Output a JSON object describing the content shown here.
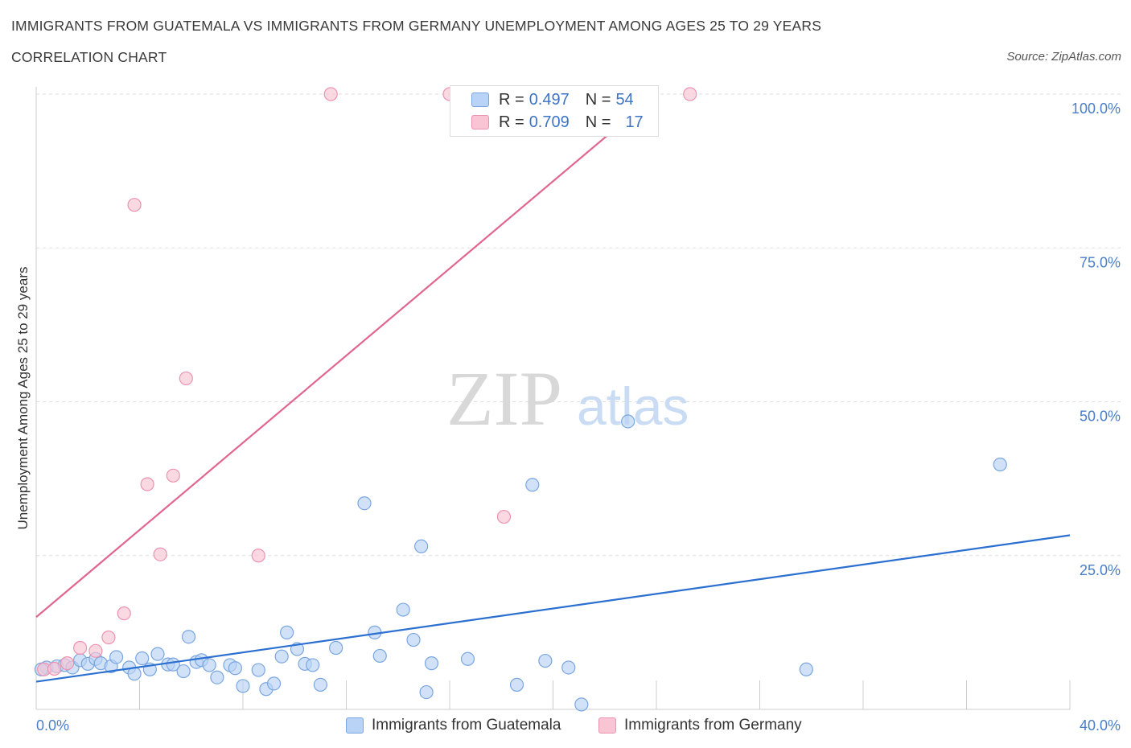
{
  "title": "IMMIGRANTS FROM GUATEMALA VS IMMIGRANTS FROM GERMANY UNEMPLOYMENT AMONG AGES 25 TO 29 YEARS",
  "subtitle": "CORRELATION CHART",
  "source": "Source: ZipAtlas.com",
  "watermark": {
    "zip": "ZIP",
    "atlas": "atlas"
  },
  "colors": {
    "guatemala_fill": "#b8d3f5",
    "guatemala_stroke": "#7aa6e0",
    "guatemala_line": "#2b6fd0",
    "germany_fill": "#f9c4d4",
    "germany_stroke": "#ec93b1",
    "germany_line": "#e06690",
    "tick_text": "#4a7ec8",
    "grid": "#dddddd"
  },
  "legend": {
    "rows": [
      {
        "r_label": "R = ",
        "r_value": "0.497",
        "n_label": "N = ",
        "n_value": "54"
      },
      {
        "r_label": "R = ",
        "r_value": "0.709",
        "n_label": "N = ",
        "n_value": "17"
      }
    ]
  },
  "bottom_legend": [
    "Immigrants from Guatemala",
    "Immigrants from Germany"
  ],
  "chart_data": {
    "type": "scatter",
    "ylabel": "Unemployment Among Ages 25 to 29 years",
    "xlim": [
      0,
      40
    ],
    "ylim": [
      0,
      100
    ],
    "x_tick_labels": [
      "0.0%",
      "40.0%"
    ],
    "y_ticks": [
      25,
      50,
      75,
      100
    ],
    "y_tick_labels": [
      "25.0%",
      "50.0%",
      "75.0%",
      "100.0%"
    ],
    "grid": true,
    "series": [
      {
        "name": "Immigrants from Guatemala",
        "R": 0.497,
        "N": 54,
        "trend": {
          "x": [
            0,
            40
          ],
          "y": [
            4.5,
            28.3
          ]
        },
        "points": [
          [
            0.4,
            6.8
          ],
          [
            0.8,
            7.0
          ],
          [
            1.1,
            7.2
          ],
          [
            1.4,
            6.8
          ],
          [
            1.7,
            8.0
          ],
          [
            2.0,
            7.4
          ],
          [
            2.3,
            8.2
          ],
          [
            2.5,
            7.5
          ],
          [
            2.9,
            7.0
          ],
          [
            3.1,
            8.5
          ],
          [
            3.6,
            6.8
          ],
          [
            3.8,
            5.8
          ],
          [
            4.1,
            8.3
          ],
          [
            4.4,
            6.5
          ],
          [
            4.7,
            9.0
          ],
          [
            5.1,
            7.3
          ],
          [
            5.3,
            7.3
          ],
          [
            5.7,
            6.2
          ],
          [
            5.9,
            11.8
          ],
          [
            6.2,
            7.7
          ],
          [
            6.4,
            8.0
          ],
          [
            6.7,
            7.2
          ],
          [
            7.0,
            5.2
          ],
          [
            7.5,
            7.2
          ],
          [
            7.7,
            6.7
          ],
          [
            8.0,
            3.8
          ],
          [
            8.6,
            6.4
          ],
          [
            8.9,
            3.3
          ],
          [
            9.2,
            4.2
          ],
          [
            9.5,
            8.6
          ],
          [
            9.7,
            12.5
          ],
          [
            10.1,
            9.8
          ],
          [
            10.4,
            7.4
          ],
          [
            10.7,
            7.2
          ],
          [
            11.0,
            4.0
          ],
          [
            11.6,
            10.0
          ],
          [
            12.7,
            33.5
          ],
          [
            13.1,
            12.5
          ],
          [
            13.3,
            8.7
          ],
          [
            14.2,
            16.2
          ],
          [
            14.6,
            11.3
          ],
          [
            14.9,
            26.5
          ],
          [
            15.1,
            2.8
          ],
          [
            15.3,
            7.5
          ],
          [
            16.7,
            8.2
          ],
          [
            18.6,
            4.0
          ],
          [
            19.2,
            36.5
          ],
          [
            19.7,
            7.9
          ],
          [
            20.6,
            6.8
          ],
          [
            21.1,
            0.8
          ],
          [
            22.9,
            46.8
          ],
          [
            29.8,
            6.5
          ],
          [
            37.3,
            39.8
          ],
          [
            0.2,
            6.5
          ]
        ]
      },
      {
        "name": "Immigrants from Germany",
        "R": 0.709,
        "N": 17,
        "trend": {
          "x": [
            0,
            24
          ],
          "y": [
            15.0,
            100.0
          ]
        },
        "points": [
          [
            0.3,
            6.5
          ],
          [
            0.7,
            6.6
          ],
          [
            1.2,
            7.5
          ],
          [
            1.7,
            10.0
          ],
          [
            2.3,
            9.5
          ],
          [
            2.8,
            11.7
          ],
          [
            3.4,
            15.6
          ],
          [
            3.8,
            82.0
          ],
          [
            4.3,
            36.6
          ],
          [
            4.8,
            25.2
          ],
          [
            5.3,
            38.0
          ],
          [
            5.8,
            53.8
          ],
          [
            8.6,
            25.0
          ],
          [
            11.4,
            100.0
          ],
          [
            16.0,
            100.0
          ],
          [
            18.1,
            31.3
          ],
          [
            25.3,
            100.0
          ]
        ]
      }
    ]
  }
}
